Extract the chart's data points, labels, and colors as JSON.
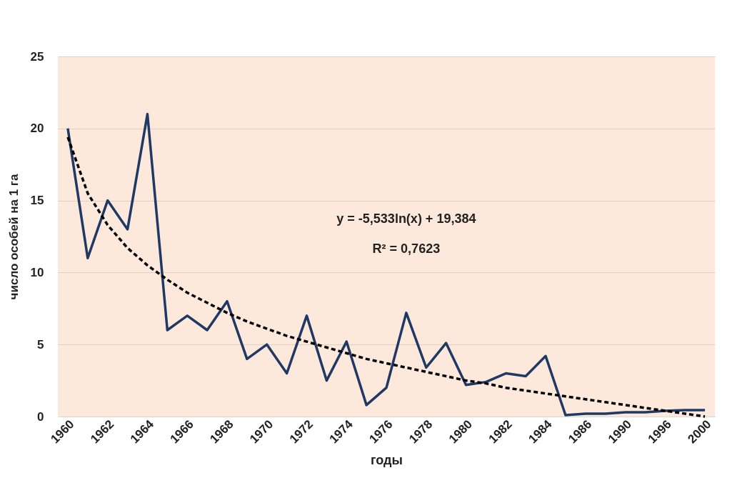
{
  "chart_data": {
    "type": "line",
    "xlabel": "годы",
    "ylabel": "число особей на 1 га",
    "categories": [
      "1960",
      null,
      "1962",
      null,
      "1964",
      null,
      "1966",
      null,
      "1968",
      null,
      "1970",
      null,
      "1972",
      null,
      "1974",
      null,
      "1976",
      null,
      "1978",
      null,
      "1980",
      null,
      "1982",
      null,
      "1984",
      null,
      "1986",
      null,
      "1990",
      null,
      "1996",
      null,
      "2000"
    ],
    "series": [
      {
        "color": "#203864",
        "line_style": "solid",
        "values": [
          20,
          11,
          15,
          13,
          21,
          6,
          7,
          6,
          8,
          4,
          5,
          3,
          7,
          2.5,
          5.2,
          0.8,
          2,
          7.2,
          3.4,
          5.1,
          2.2,
          2.4,
          3,
          2.8,
          4.2,
          0.1,
          0.2,
          0.2,
          0.3,
          0.3,
          0.4,
          0.45,
          0.45
        ]
      },
      {
        "color": "#000000",
        "line_style": "dashed",
        "values": [
          19.4,
          15.5,
          13.3,
          11.7,
          10.5,
          9.5,
          8.6,
          7.9,
          7.2,
          6.6,
          6.1,
          5.6,
          5.2,
          4.8,
          4.4,
          4.0,
          3.7,
          3.4,
          3.1,
          2.8,
          2.5,
          2.3,
          2.0,
          1.8,
          1.6,
          1.4,
          1.2,
          1.0,
          0.8,
          0.6,
          0.4,
          0.2,
          0.0
        ]
      }
    ],
    "ylim": [
      0,
      25
    ],
    "yticks": [
      0,
      5,
      10,
      15,
      20,
      25
    ],
    "grid": "y",
    "annotations": [
      "y = -5,533ln(x) + 19,384",
      "R² = 0,7623"
    ]
  }
}
